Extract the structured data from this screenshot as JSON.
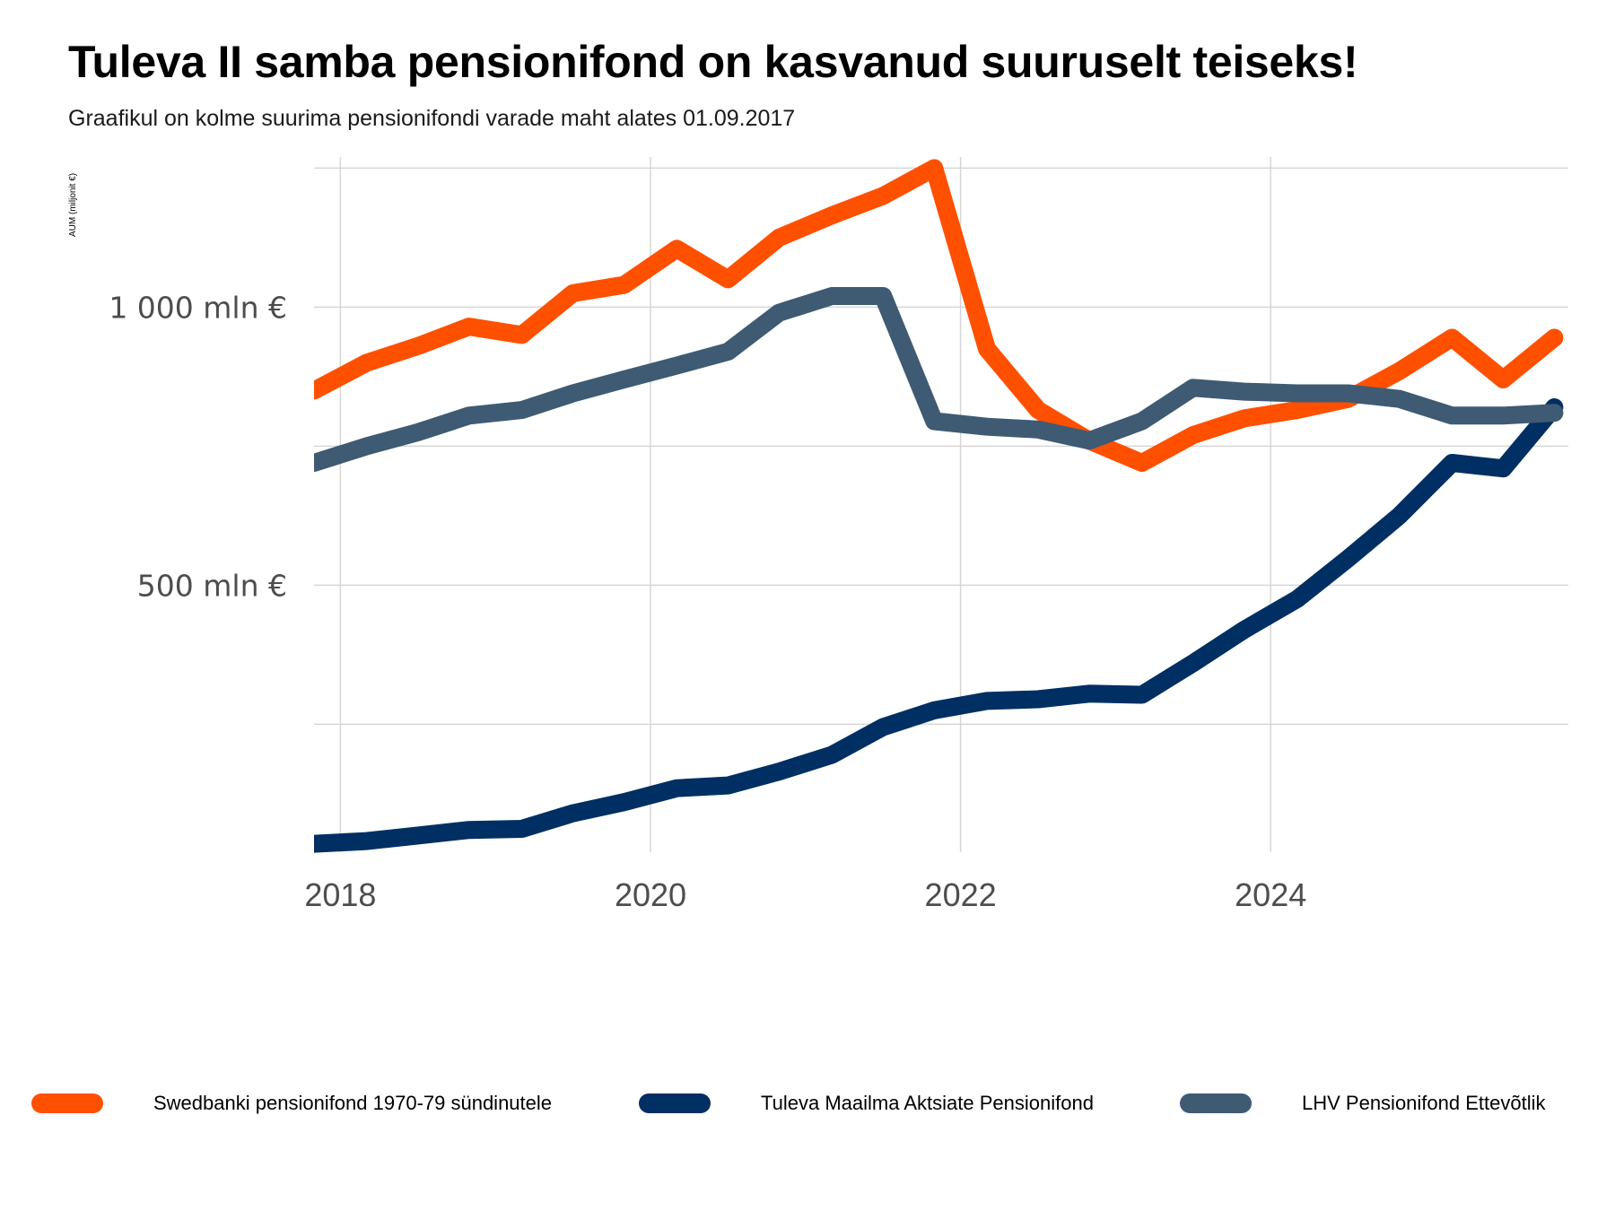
{
  "title": "Tuleva II samba pensionifond on kasvanud suuruselt teiseks!",
  "subtitle": "Graafikul on kolme suurima pensionifondi varade maht alates 01.09.2017",
  "chart_data": {
    "type": "line",
    "title": "Tuleva II samba pensionifond on kasvanud suuruselt teiseks!",
    "subtitle": "Graafikul on kolme suurima pensionifondi varade maht alates 01.09.2017",
    "ylabel": "AUM (miljonit €)",
    "xlabel": "",
    "xlim": [
      2017.83,
      2025.92
    ],
    "ylim": [
      20,
      1270
    ],
    "x_ticks": [
      {
        "value": 2018,
        "label": "2018"
      },
      {
        "value": 2020,
        "label": "2020"
      },
      {
        "value": 2022,
        "label": "2022"
      },
      {
        "value": 2024,
        "label": "2024"
      }
    ],
    "y_ticks": [
      {
        "value": 500,
        "label": "500 mln €"
      },
      {
        "value": 1000,
        "label": "1 000 mln €"
      }
    ],
    "y_gridlines": [
      250,
      500,
      750,
      1000,
      1250
    ],
    "grid": true,
    "legend_position": "bottom",
    "x": [
      2017.83,
      2018.17,
      2018.5,
      2018.83,
      2019.17,
      2019.5,
      2019.83,
      2020.17,
      2020.5,
      2020.83,
      2021.17,
      2021.5,
      2021.83,
      2022.17,
      2022.5,
      2022.83,
      2023.17,
      2023.5,
      2023.83,
      2024.17,
      2024.5,
      2024.83,
      2025.17,
      2025.5,
      2025.83
    ],
    "series": [
      {
        "name": "Swedbanki pensionifond 1970-79 sündinutele",
        "color": "#ff5000",
        "values": [
          850,
          900,
          930,
          965,
          950,
          1025,
          1040,
          1105,
          1050,
          1125,
          1165,
          1200,
          1250,
          925,
          815,
          760,
          720,
          770,
          800,
          815,
          835,
          885,
          945,
          870,
          945
        ]
      },
      {
        "name": "Tuleva Maailma Aktsiate Pensionifond",
        "color": "#002f63",
        "values": [
          35,
          40,
          50,
          60,
          62,
          90,
          110,
          135,
          140,
          165,
          195,
          245,
          275,
          292,
          295,
          305,
          303,
          360,
          420,
          475,
          548,
          625,
          720,
          710,
          820
        ]
      },
      {
        "name": "LHV Pensionifond Ettevõtlik",
        "color": "#3f5a73",
        "values": [
          720,
          750,
          775,
          805,
          815,
          845,
          870,
          895,
          920,
          990,
          1020,
          1020,
          795,
          785,
          780,
          760,
          795,
          855,
          848,
          845,
          845,
          835,
          805,
          805,
          810
        ]
      }
    ]
  }
}
